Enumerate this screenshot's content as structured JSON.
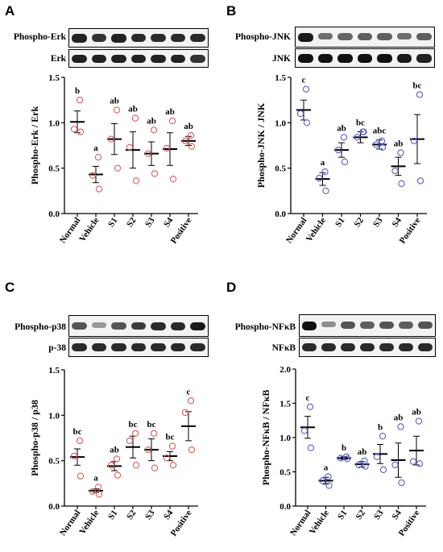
{
  "chart_data": [
    {
      "type": "scatter",
      "panel_label": "A",
      "blot_labels": [
        "Phospho-Erk",
        "Erk"
      ],
      "ylabel": "Phospho-Erk / Erk",
      "ylim": [
        0,
        1.5
      ],
      "yticks": [
        "0.0",
        "0.5",
        "1.0",
        "1.5"
      ],
      "categories": [
        "Normal",
        "Vehicle",
        "S1",
        "S2",
        "S3",
        "S4",
        "Positive"
      ],
      "means": [
        1.01,
        0.43,
        0.82,
        0.7,
        0.66,
        0.71,
        0.8
      ],
      "sem": [
        0.12,
        0.09,
        0.17,
        0.2,
        0.13,
        0.18,
        0.05
      ],
      "points": [
        [
          1.25,
          0.93,
          0.9
        ],
        [
          0.62,
          0.42,
          0.27
        ],
        [
          1.14,
          0.82,
          0.5
        ],
        [
          1.05,
          0.73,
          0.36
        ],
        [
          0.92,
          0.66,
          0.44
        ],
        [
          1.02,
          0.72,
          0.38
        ],
        [
          0.86,
          0.8,
          0.74
        ]
      ],
      "letters": [
        "b",
        "a",
        "ab",
        "ab",
        "ab",
        "ab",
        "ab"
      ],
      "marker_color": "#e05a5a"
    },
    {
      "type": "scatter",
      "panel_label": "B",
      "blot_labels": [
        "Phospho-JNK",
        "JNK"
      ],
      "ylabel": "Phospho-JNK / JNK",
      "ylim": [
        0,
        1.5
      ],
      "yticks": [
        "0.0",
        "0.5",
        "1.0",
        "1.5"
      ],
      "categories": [
        "Normal",
        "Vehicle",
        "S1",
        "S2",
        "S3",
        "S4",
        "Positive"
      ],
      "means": [
        1.14,
        0.38,
        0.7,
        0.84,
        0.76,
        0.52,
        0.82
      ],
      "sem": [
        0.11,
        0.07,
        0.08,
        0.06,
        0.05,
        0.1,
        0.27
      ],
      "points": [
        [
          1.37,
          1.1,
          1.0
        ],
        [
          0.46,
          0.39,
          0.25
        ],
        [
          0.84,
          0.7,
          0.57
        ],
        [
          0.9,
          0.84,
          0.9
        ],
        [
          0.8,
          0.76,
          0.73
        ],
        [
          0.67,
          0.47,
          0.33
        ],
        [
          1.31,
          0.8,
          0.36
        ]
      ],
      "letters": [
        "c",
        "a",
        "ab",
        "bc",
        "abc",
        "ab",
        "bc"
      ],
      "marker_color": "#5a5ad0"
    },
    {
      "type": "scatter",
      "panel_label": "C",
      "blot_labels": [
        "Phospho-p38",
        "p-38"
      ],
      "ylabel": "Phospho-p38 / p38",
      "ylim": [
        0,
        1.5
      ],
      "yticks": [
        "0.0",
        "0.5",
        "1.0",
        "1.5"
      ],
      "categories": [
        "Normal",
        "Vehicle",
        "S1",
        "S2",
        "S3",
        "S4",
        "Positive"
      ],
      "means": [
        0.54,
        0.17,
        0.44,
        0.65,
        0.62,
        0.55,
        0.88
      ],
      "sem": [
        0.09,
        0.02,
        0.05,
        0.12,
        0.12,
        0.05,
        0.16
      ],
      "points": [
        [
          0.72,
          0.55,
          0.33
        ],
        [
          0.21,
          0.16,
          0.13
        ],
        [
          0.52,
          0.45,
          0.34
        ],
        [
          0.8,
          0.72,
          0.45
        ],
        [
          0.8,
          0.62,
          0.42
        ],
        [
          0.66,
          0.53,
          0.45
        ],
        [
          1.16,
          1.03,
          0.62
        ]
      ],
      "letters": [
        "bc",
        "a",
        "ab",
        "bc",
        "bc",
        "bc",
        "c"
      ],
      "marker_color": "#e05a5a"
    },
    {
      "type": "scatter",
      "panel_label": "D",
      "blot_labels": [
        "Phospho-NFκB",
        "NFκB"
      ],
      "ylabel": "Phospho-NFκB / NFκB",
      "ylim": [
        0,
        2.0
      ],
      "yticks": [
        "0.0",
        "0.5",
        "1.0",
        "1.5",
        "2.0"
      ],
      "categories": [
        "Normal",
        "Vehicle",
        "S1",
        "S2",
        "S3",
        "S4",
        "Positive"
      ],
      "means": [
        1.15,
        0.37,
        0.7,
        0.61,
        0.76,
        0.67,
        0.81
      ],
      "sem": [
        0.16,
        0.05,
        0.02,
        0.04,
        0.14,
        0.25,
        0.21
      ],
      "points": [
        [
          1.45,
          1.1,
          0.85
        ],
        [
          0.43,
          0.37,
          0.3
        ],
        [
          0.72,
          0.7,
          0.69
        ],
        [
          0.66,
          0.6,
          0.58
        ],
        [
          1.02,
          0.72,
          0.53
        ],
        [
          1.16,
          0.6,
          0.34
        ],
        [
          1.24,
          0.65,
          0.62
        ]
      ],
      "letters": [
        "c",
        "a",
        "b",
        "ab",
        "b",
        "ab",
        "ab"
      ],
      "marker_color": "#5a5ad0"
    }
  ]
}
